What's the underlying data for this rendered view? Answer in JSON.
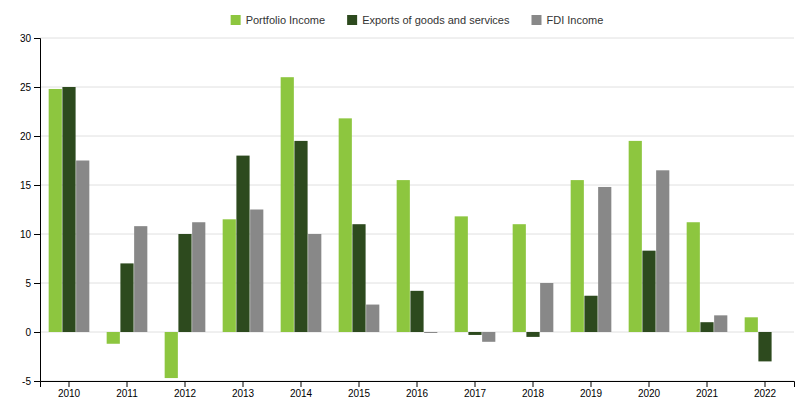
{
  "chart_data": {
    "type": "bar",
    "categories": [
      "2010",
      "2011",
      "2012",
      "2013",
      "2014",
      "2015",
      "2016",
      "2017",
      "2018",
      "2019",
      "2020",
      "2021",
      "2022"
    ],
    "series": [
      {
        "name": "Portfolio Income",
        "color": "#8dc63f",
        "values": [
          24.8,
          -1.2,
          -4.7,
          11.5,
          26.0,
          21.8,
          15.5,
          11.8,
          11.0,
          15.5,
          19.5,
          11.2,
          1.5
        ]
      },
      {
        "name": "Exports of goods and services",
        "color": "#2d4a1e",
        "values": [
          25.0,
          7.0,
          10.0,
          18.0,
          19.5,
          11.0,
          4.2,
          -0.3,
          -0.5,
          3.7,
          8.3,
          1.0,
          -3.0
        ]
      },
      {
        "name": "FDI Income",
        "color": "#888888",
        "values": [
          17.5,
          10.8,
          11.2,
          12.5,
          10.0,
          2.8,
          -0.1,
          -1.0,
          5.0,
          14.8,
          16.5,
          1.7,
          0.0
        ]
      }
    ],
    "ylim": [
      -5,
      30
    ],
    "yticks": [
      -5,
      0,
      5,
      10,
      15,
      20,
      25,
      30
    ],
    "grid": true,
    "legend": "upper center"
  }
}
